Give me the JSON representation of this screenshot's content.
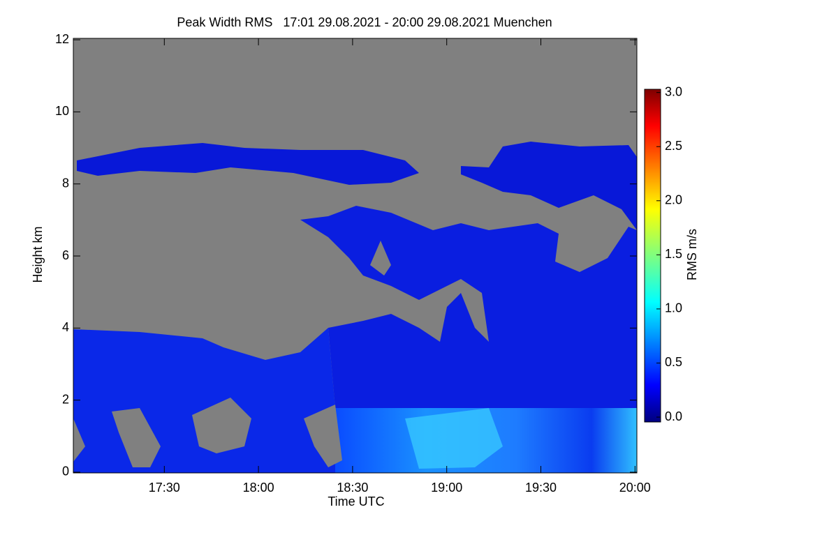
{
  "chart_data": {
    "type": "heatmap",
    "title": "Peak Width RMS   17:01 29.08.2021 - 20:00 29.08.2021 Muenchen",
    "xlabel": "Time UTC",
    "ylabel": "Height km",
    "xlim": [
      17.0167,
      20.01
    ],
    "xticks": [
      {
        "value": 17.5,
        "label": "17:30"
      },
      {
        "value": 18,
        "label": "18:00"
      },
      {
        "value": 18.5,
        "label": "18:30"
      },
      {
        "value": 19,
        "label": "19:00"
      },
      {
        "value": 19.5,
        "label": "19:30"
      },
      {
        "value": 20,
        "label": "20:00"
      }
    ],
    "ylim": [
      -0.02,
      12.04
    ],
    "yticks": [
      0,
      2,
      4,
      6,
      8,
      10,
      12
    ],
    "colorbar": {
      "label": "RMS m/s",
      "lim": [
        -0.045,
        3.03
      ],
      "ticks": [
        {
          "value": 0,
          "label": "0.0"
        },
        {
          "value": 0.5,
          "label": "0.5"
        },
        {
          "value": 1,
          "label": "1.0"
        },
        {
          "value": 1.5,
          "label": "1.5"
        },
        {
          "value": 2,
          "label": "2.0"
        },
        {
          "value": 2.5,
          "label": "2.5"
        },
        {
          "value": 3,
          "label": "3.0"
        }
      ]
    }
  }
}
